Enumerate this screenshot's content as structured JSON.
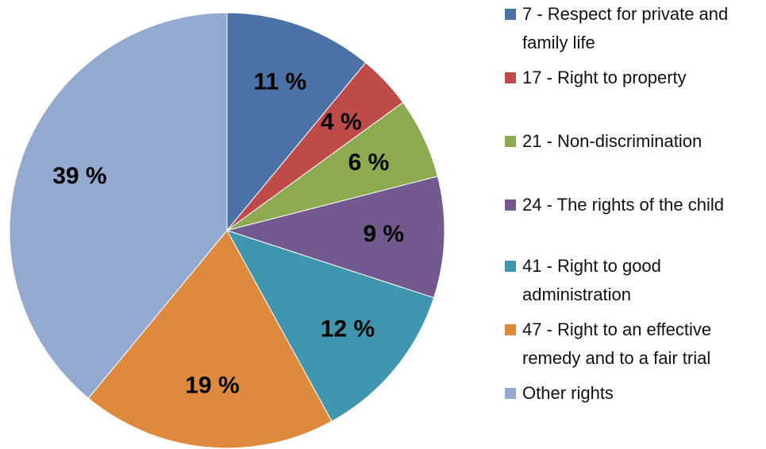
{
  "chart_data": {
    "type": "pie",
    "categories": [
      "7 - Respect for private and family life",
      "17 - Right to property",
      "21 - Non-discrimination",
      "24 - The rights of the child",
      "41 - Right to good administration",
      "47 - Right to an effective remedy and to a fair trial",
      "Other rights"
    ],
    "values": [
      11,
      4,
      6,
      9,
      12,
      19,
      39
    ],
    "value_labels": [
      "11 %",
      "4 %",
      "6 %",
      "9 %",
      "12 %",
      "19 %",
      "39 %"
    ],
    "colors": [
      "#4A72A7",
      "#BE4B48",
      "#8CAA50",
      "#725990",
      "#4096AE",
      "#DD8A3C",
      "#93A9CF"
    ],
    "legend": "right"
  }
}
